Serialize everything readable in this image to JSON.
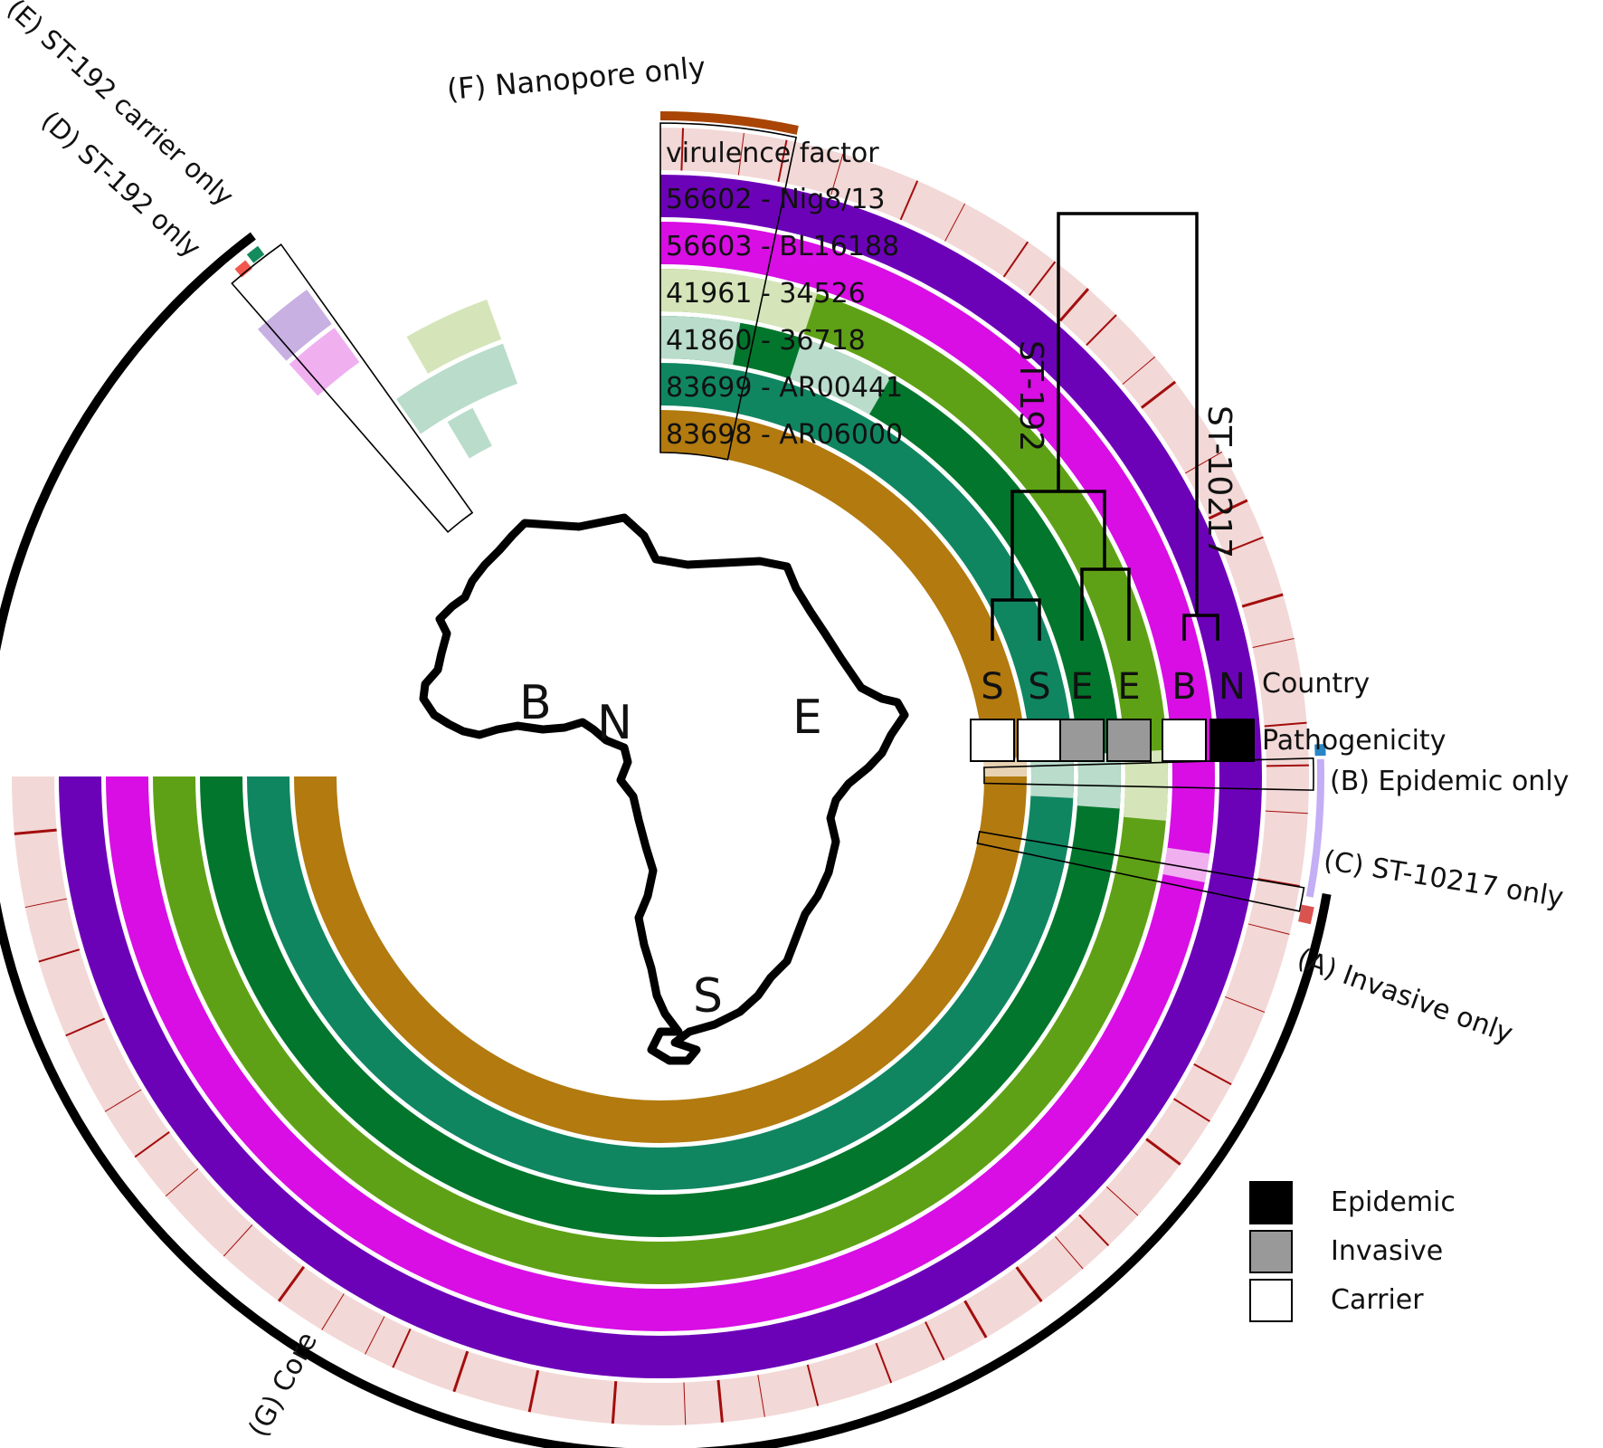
{
  "rings": [
    {
      "label": "virulence factor",
      "color": "#f2d8d6"
    },
    {
      "label": "56602 - Nig8/13",
      "color": "#6c02b8"
    },
    {
      "label": "56603 - BL16188",
      "color": "#d80ee4"
    },
    {
      "label": "41961 - 34526",
      "color": "#5fa116"
    },
    {
      "label": "41860 - 36718",
      "color": "#02762c"
    },
    {
      "label": "83699 - AR00441",
      "color": "#108660"
    },
    {
      "label": "83698 - AR06000",
      "color": "#b27a0f"
    }
  ],
  "regions": {
    "A": "(A) Invasive only",
    "B": "(B) Epidemic only",
    "C": "(C) ST-10217 only",
    "D": "(D) ST-192 only",
    "E": "(E) ST-192 carrier only",
    "F": "(F) Nanopore only",
    "G": "(G) Core"
  },
  "region_colors": {
    "A": "#d9534f",
    "B": "#2986c4",
    "C": "#c4aef5",
    "D": "#f2574d",
    "E": "#138b5c",
    "F": "#a94505",
    "G": "#000000"
  },
  "virulence_color": "#a30d0d",
  "tree": {
    "clade_left": "ST-192",
    "clade_right": "ST-10217",
    "countries": [
      "S",
      "S",
      "E",
      "E",
      "B",
      "N"
    ],
    "country_label": "Country",
    "pathogenicity": [
      "Carrier",
      "Carrier",
      "Invasive",
      "Invasive",
      "Carrier",
      "Epidemic"
    ],
    "pathogenicity_label": "Pathogenicity"
  },
  "map": {
    "letters": [
      "B",
      "N",
      "E",
      "S"
    ]
  },
  "legend": [
    {
      "label": "Epidemic",
      "color": "#000000"
    },
    {
      "label": "Invasive",
      "color": "#999999"
    },
    {
      "label": "Carrier",
      "color": "#ffffff"
    }
  ]
}
